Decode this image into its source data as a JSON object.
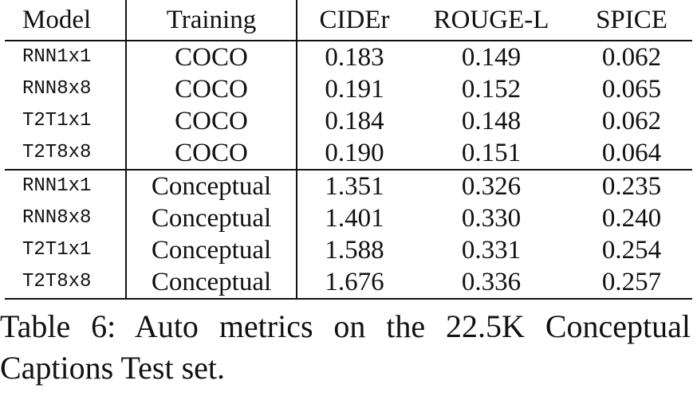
{
  "table": {
    "headers": [
      "Model",
      "Training",
      "CIDEr",
      "ROUGE-L",
      "SPICE"
    ],
    "rows": [
      {
        "model": "RNN1x1",
        "training": "COCO",
        "cider": "0.183",
        "rouge": "0.149",
        "spice": "0.062"
      },
      {
        "model": "RNN8x8",
        "training": "COCO",
        "cider": "0.191",
        "rouge": "0.152",
        "spice": "0.065"
      },
      {
        "model": "T2T1x1",
        "training": "COCO",
        "cider": "0.184",
        "rouge": "0.148",
        "spice": "0.062"
      },
      {
        "model": "T2T8x8",
        "training": "COCO",
        "cider": "0.190",
        "rouge": "0.151",
        "spice": "0.064"
      },
      {
        "model": "RNN1x1",
        "training": "Conceptual",
        "cider": "1.351",
        "rouge": "0.326",
        "spice": "0.235"
      },
      {
        "model": "RNN8x8",
        "training": "Conceptual",
        "cider": "1.401",
        "rouge": "0.330",
        "spice": "0.240"
      },
      {
        "model": "T2T1x1",
        "training": "Conceptual",
        "cider": "1.588",
        "rouge": "0.331",
        "spice": "0.254"
      },
      {
        "model": "T2T8x8",
        "training": "Conceptual",
        "cider": "1.676",
        "rouge": "0.336",
        "spice": "0.257"
      }
    ]
  },
  "caption": {
    "line1": "Table 6: Auto metrics on the 22.5K Conceptual",
    "line2": "Captions Test set."
  }
}
